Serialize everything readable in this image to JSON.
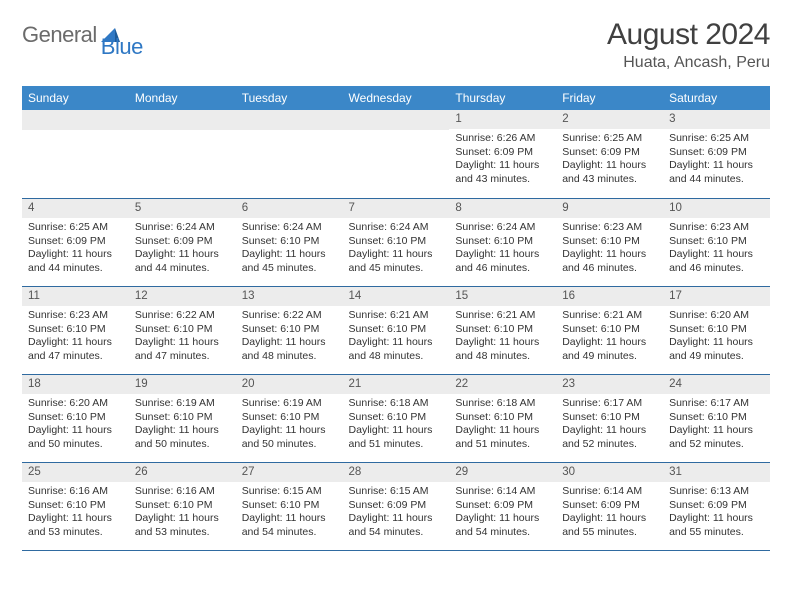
{
  "logo": {
    "text1": "General",
    "text2": "Blue"
  },
  "title": "August 2024",
  "location": "Huata, Ancash, Peru",
  "colors": {
    "header_bg": "#3b87c8",
    "header_text": "#ffffff",
    "daynum_bg": "#ececec",
    "border": "#2f6aa0",
    "logo_gray": "#6b6b6b",
    "logo_blue": "#2f78c4"
  },
  "weekdays": [
    "Sunday",
    "Monday",
    "Tuesday",
    "Wednesday",
    "Thursday",
    "Friday",
    "Saturday"
  ],
  "weeks": [
    [
      null,
      null,
      null,
      null,
      {
        "n": "1",
        "sr": "6:26 AM",
        "ss": "6:09 PM",
        "dl": "11 hours and 43 minutes."
      },
      {
        "n": "2",
        "sr": "6:25 AM",
        "ss": "6:09 PM",
        "dl": "11 hours and 43 minutes."
      },
      {
        "n": "3",
        "sr": "6:25 AM",
        "ss": "6:09 PM",
        "dl": "11 hours and 44 minutes."
      }
    ],
    [
      {
        "n": "4",
        "sr": "6:25 AM",
        "ss": "6:09 PM",
        "dl": "11 hours and 44 minutes."
      },
      {
        "n": "5",
        "sr": "6:24 AM",
        "ss": "6:09 PM",
        "dl": "11 hours and 44 minutes."
      },
      {
        "n": "6",
        "sr": "6:24 AM",
        "ss": "6:10 PM",
        "dl": "11 hours and 45 minutes."
      },
      {
        "n": "7",
        "sr": "6:24 AM",
        "ss": "6:10 PM",
        "dl": "11 hours and 45 minutes."
      },
      {
        "n": "8",
        "sr": "6:24 AM",
        "ss": "6:10 PM",
        "dl": "11 hours and 46 minutes."
      },
      {
        "n": "9",
        "sr": "6:23 AM",
        "ss": "6:10 PM",
        "dl": "11 hours and 46 minutes."
      },
      {
        "n": "10",
        "sr": "6:23 AM",
        "ss": "6:10 PM",
        "dl": "11 hours and 46 minutes."
      }
    ],
    [
      {
        "n": "11",
        "sr": "6:23 AM",
        "ss": "6:10 PM",
        "dl": "11 hours and 47 minutes."
      },
      {
        "n": "12",
        "sr": "6:22 AM",
        "ss": "6:10 PM",
        "dl": "11 hours and 47 minutes."
      },
      {
        "n": "13",
        "sr": "6:22 AM",
        "ss": "6:10 PM",
        "dl": "11 hours and 48 minutes."
      },
      {
        "n": "14",
        "sr": "6:21 AM",
        "ss": "6:10 PM",
        "dl": "11 hours and 48 minutes."
      },
      {
        "n": "15",
        "sr": "6:21 AM",
        "ss": "6:10 PM",
        "dl": "11 hours and 48 minutes."
      },
      {
        "n": "16",
        "sr": "6:21 AM",
        "ss": "6:10 PM",
        "dl": "11 hours and 49 minutes."
      },
      {
        "n": "17",
        "sr": "6:20 AM",
        "ss": "6:10 PM",
        "dl": "11 hours and 49 minutes."
      }
    ],
    [
      {
        "n": "18",
        "sr": "6:20 AM",
        "ss": "6:10 PM",
        "dl": "11 hours and 50 minutes."
      },
      {
        "n": "19",
        "sr": "6:19 AM",
        "ss": "6:10 PM",
        "dl": "11 hours and 50 minutes."
      },
      {
        "n": "20",
        "sr": "6:19 AM",
        "ss": "6:10 PM",
        "dl": "11 hours and 50 minutes."
      },
      {
        "n": "21",
        "sr": "6:18 AM",
        "ss": "6:10 PM",
        "dl": "11 hours and 51 minutes."
      },
      {
        "n": "22",
        "sr": "6:18 AM",
        "ss": "6:10 PM",
        "dl": "11 hours and 51 minutes."
      },
      {
        "n": "23",
        "sr": "6:17 AM",
        "ss": "6:10 PM",
        "dl": "11 hours and 52 minutes."
      },
      {
        "n": "24",
        "sr": "6:17 AM",
        "ss": "6:10 PM",
        "dl": "11 hours and 52 minutes."
      }
    ],
    [
      {
        "n": "25",
        "sr": "6:16 AM",
        "ss": "6:10 PM",
        "dl": "11 hours and 53 minutes."
      },
      {
        "n": "26",
        "sr": "6:16 AM",
        "ss": "6:10 PM",
        "dl": "11 hours and 53 minutes."
      },
      {
        "n": "27",
        "sr": "6:15 AM",
        "ss": "6:10 PM",
        "dl": "11 hours and 54 minutes."
      },
      {
        "n": "28",
        "sr": "6:15 AM",
        "ss": "6:09 PM",
        "dl": "11 hours and 54 minutes."
      },
      {
        "n": "29",
        "sr": "6:14 AM",
        "ss": "6:09 PM",
        "dl": "11 hours and 54 minutes."
      },
      {
        "n": "30",
        "sr": "6:14 AM",
        "ss": "6:09 PM",
        "dl": "11 hours and 55 minutes."
      },
      {
        "n": "31",
        "sr": "6:13 AM",
        "ss": "6:09 PM",
        "dl": "11 hours and 55 minutes."
      }
    ]
  ],
  "labels": {
    "sunrise": "Sunrise: ",
    "sunset": "Sunset: ",
    "daylight": "Daylight: "
  }
}
